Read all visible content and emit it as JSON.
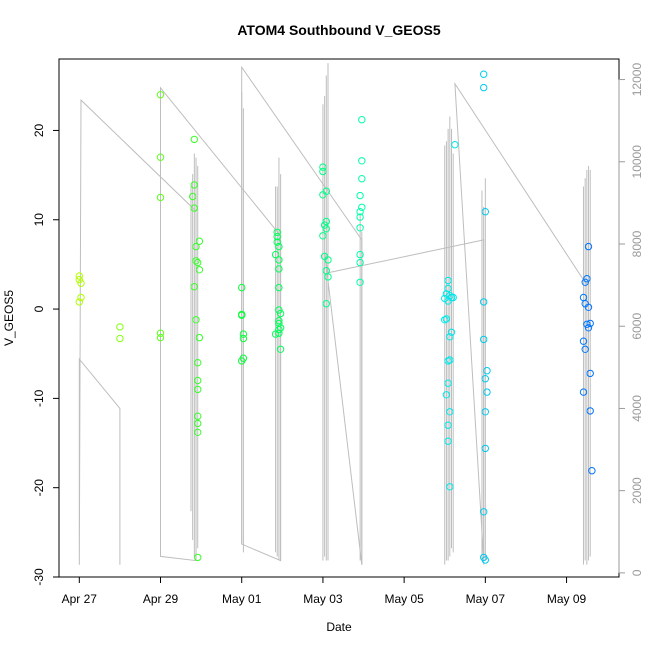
{
  "chart_data": {
    "type": "scatter",
    "title": "ATOM4 Southbound V_GEOS5",
    "xlabel": "Date",
    "ylabel": "V_GEOS5",
    "x_axis": {
      "type": "date",
      "range": [
        "2016-04-26T12:00",
        "2016-05-10T07:00"
      ],
      "ticks": [
        {
          "date": "2016-04-27",
          "label": "Apr 27"
        },
        {
          "date": "2016-04-29",
          "label": "Apr 29"
        },
        {
          "date": "2016-05-01",
          "label": "May 01"
        },
        {
          "date": "2016-05-03",
          "label": "May 03"
        },
        {
          "date": "2016-05-05",
          "label": "May 05"
        },
        {
          "date": "2016-05-07",
          "label": "May 07"
        },
        {
          "date": "2016-05-09",
          "label": "May 09"
        }
      ]
    },
    "y_axis": {
      "range": [
        -30,
        28
      ],
      "ticks": [
        -30,
        -20,
        -10,
        0,
        10,
        20
      ],
      "tick_labels": [
        "-30",
        "-20",
        "-10",
        "0",
        "10",
        "20"
      ]
    },
    "y2_axis": {
      "color": "#9a9a9a",
      "range": [
        -100,
        12500
      ],
      "ticks": [
        0,
        2000,
        4000,
        6000,
        8000,
        10000,
        12000
      ],
      "tick_labels": [
        "0",
        "2000",
        "4000",
        "6000",
        "8000",
        "10000",
        "12000"
      ]
    },
    "grid": false,
    "legend": "none",
    "colors": {
      "points_start": "#b3ff00",
      "points_end": "#0073ff",
      "altitude_line": "#bebebe"
    },
    "series": [
      {
        "values": [
          [
            "2016-04-27T00:00",
            3.7
          ],
          [
            "2016-04-27T00:00",
            3.3
          ],
          [
            "2016-04-27T01:00",
            2.9
          ],
          [
            "2016-04-27T00:00",
            0.8
          ],
          [
            "2016-04-27T01:00",
            1.3
          ],
          [
            "2016-04-28T00:00",
            -2.0
          ],
          [
            "2016-04-28T00:00",
            -3.3
          ],
          [
            "2016-04-29T00:00",
            24.0
          ],
          [
            "2016-04-29T00:00",
            17.0
          ],
          [
            "2016-04-29T00:00",
            12.5
          ],
          [
            "2016-04-29T00:00",
            -2.7
          ],
          [
            "2016-04-29T00:00",
            -3.2
          ],
          [
            "2016-04-29T20:00",
            19.0
          ],
          [
            "2016-04-29T20:00",
            13.9
          ],
          [
            "2016-04-29T19:00",
            12.6
          ],
          [
            "2016-04-29T20:00",
            11.3
          ],
          [
            "2016-04-29T21:00",
            7.0
          ],
          [
            "2016-04-29T21:00",
            5.4
          ],
          [
            "2016-04-29T20:00",
            2.5
          ],
          [
            "2016-04-29T22:00",
            5.2
          ],
          [
            "2016-04-29T23:00",
            7.6
          ],
          [
            "2016-04-29T23:00",
            4.4
          ],
          [
            "2016-04-29T21:00",
            -1.2
          ],
          [
            "2016-04-29T23:00",
            -3.2
          ],
          [
            "2016-04-29T22:00",
            -6.0
          ],
          [
            "2016-04-29T22:00",
            -8.0
          ],
          [
            "2016-04-29T22:00",
            -9.0
          ],
          [
            "2016-04-29T22:00",
            -12.0
          ],
          [
            "2016-04-29T22:00",
            -12.8
          ],
          [
            "2016-04-29T22:00",
            -13.8
          ],
          [
            "2016-04-29T22:00",
            -27.8
          ],
          [
            "2016-05-01T00:00",
            2.4
          ],
          [
            "2016-05-01T00:00",
            -0.6
          ],
          [
            "2016-05-01T00:00",
            -0.7
          ],
          [
            "2016-05-01T01:00",
            -2.8
          ],
          [
            "2016-05-01T01:00",
            -3.3
          ],
          [
            "2016-05-01T01:00",
            -5.5
          ],
          [
            "2016-05-01T00:00",
            -5.8
          ],
          [
            "2016-05-01T21:00",
            8.6
          ],
          [
            "2016-05-01T21:00",
            8.1
          ],
          [
            "2016-05-01T21:00",
            7.5
          ],
          [
            "2016-05-01T22:00",
            7.0
          ],
          [
            "2016-05-01T20:00",
            6.1
          ],
          [
            "2016-05-01T22:00",
            5.5
          ],
          [
            "2016-05-01T22:00",
            4.5
          ],
          [
            "2016-05-01T22:00",
            2.4
          ],
          [
            "2016-05-01T22:00",
            -0.1
          ],
          [
            "2016-05-01T23:00",
            -0.5
          ],
          [
            "2016-05-01T22:00",
            -1.3
          ],
          [
            "2016-05-01T22:00",
            -1.6
          ],
          [
            "2016-05-01T23:00",
            -2.1
          ],
          [
            "2016-05-01T22:00",
            -2.3
          ],
          [
            "2016-05-01T22:00",
            -2.7
          ],
          [
            "2016-05-01T20:00",
            -2.8
          ],
          [
            "2016-05-01T23:00",
            -4.5
          ],
          [
            "2016-05-03T00:00",
            15.9
          ],
          [
            "2016-05-03T00:00",
            15.4
          ],
          [
            "2016-05-03T02:00",
            13.2
          ],
          [
            "2016-05-03T00:00",
            12.8
          ],
          [
            "2016-05-03T02:00",
            9.8
          ],
          [
            "2016-05-03T01:00",
            9.4
          ],
          [
            "2016-05-03T02:00",
            9.0
          ],
          [
            "2016-05-03T00:00",
            8.2
          ],
          [
            "2016-05-03T01:00",
            5.9
          ],
          [
            "2016-05-03T03:00",
            5.5
          ],
          [
            "2016-05-03T02:00",
            4.3
          ],
          [
            "2016-05-03T03:00",
            3.6
          ],
          [
            "2016-05-03T02:00",
            0.6
          ],
          [
            "2016-05-03T23:00",
            21.2
          ],
          [
            "2016-05-03T23:00",
            16.6
          ],
          [
            "2016-05-03T23:00",
            14.6
          ],
          [
            "2016-05-03T22:00",
            12.7
          ],
          [
            "2016-05-03T23:00",
            11.4
          ],
          [
            "2016-05-03T22:00",
            10.9
          ],
          [
            "2016-05-03T22:00",
            10.3
          ],
          [
            "2016-05-03T22:00",
            9.1
          ],
          [
            "2016-05-03T22:00",
            6.1
          ],
          [
            "2016-05-03T22:00",
            5.2
          ],
          [
            "2016-05-03T22:00",
            3.0
          ],
          [
            "2016-05-06T02:00",
            3.2
          ],
          [
            "2016-05-06T02:00",
            2.3
          ],
          [
            "2016-05-06T01:00",
            1.7
          ],
          [
            "2016-05-06T00:00",
            1.2
          ],
          [
            "2016-05-06T02:00",
            0.9
          ],
          [
            "2016-05-06T03:00",
            1.5
          ],
          [
            "2016-05-06T04:00",
            1.3
          ],
          [
            "2016-05-06T05:00",
            1.3
          ],
          [
            "2016-05-06T00:00",
            -1.2
          ],
          [
            "2016-05-06T01:00",
            -1.1
          ],
          [
            "2016-05-06T04:00",
            -2.6
          ],
          [
            "2016-05-06T03:00",
            -3.1
          ],
          [
            "2016-05-06T02:00",
            -5.8
          ],
          [
            "2016-05-06T03:00",
            -5.7
          ],
          [
            "2016-05-06T02:00",
            -8.3
          ],
          [
            "2016-05-06T01:00",
            -9.6
          ],
          [
            "2016-05-06T03:00",
            -11.5
          ],
          [
            "2016-05-06T02:00",
            -13.0
          ],
          [
            "2016-05-06T02:00",
            -14.8
          ],
          [
            "2016-05-06T03:00",
            -19.9
          ],
          [
            "2016-05-06T06:00",
            18.4
          ],
          [
            "2016-05-06T23:00",
            26.3
          ],
          [
            "2016-05-06T23:00",
            24.8
          ],
          [
            "2016-05-07T00:00",
            10.9
          ],
          [
            "2016-05-06T23:00",
            0.8
          ],
          [
            "2016-05-06T23:00",
            -3.4
          ],
          [
            "2016-05-07T01:00",
            -6.9
          ],
          [
            "2016-05-07T00:00",
            -7.8
          ],
          [
            "2016-05-07T01:00",
            -9.3
          ],
          [
            "2016-05-07T00:00",
            -11.5
          ],
          [
            "2016-05-07T00:00",
            -15.6
          ],
          [
            "2016-05-06T23:00",
            -22.7
          ],
          [
            "2016-05-06T23:00",
            -27.8
          ],
          [
            "2016-05-07T00:00",
            -28.1
          ],
          [
            "2016-05-09T13:00",
            7.0
          ],
          [
            "2016-05-09T12:00",
            3.4
          ],
          [
            "2016-05-09T11:00",
            3.0
          ],
          [
            "2016-05-09T10:00",
            1.3
          ],
          [
            "2016-05-09T11:00",
            0.6
          ],
          [
            "2016-05-09T13:00",
            0.2
          ],
          [
            "2016-05-09T12:00",
            -1.7
          ],
          [
            "2016-05-09T14:00",
            -1.6
          ],
          [
            "2016-05-09T13:00",
            -2.1
          ],
          [
            "2016-05-09T10:00",
            -3.6
          ],
          [
            "2016-05-09T11:00",
            -4.5
          ],
          [
            "2016-05-09T14:00",
            -7.2
          ],
          [
            "2016-05-09T10:00",
            -9.3
          ],
          [
            "2016-05-09T14:00",
            -11.4
          ],
          [
            "2016-05-09T15:00",
            -18.1
          ]
        ]
      },
      {
        "axis": "y2",
        "style": "line",
        "values": [
          [
            "2016-04-27T00:00",
            200
          ],
          [
            "2016-04-27T00:00",
            5200
          ],
          [
            "2016-04-28T00:00",
            4000
          ],
          [
            "2016-04-28T00:00",
            200
          ],
          [
            "2016-04-28T00:00",
            4000
          ],
          [
            "2016-04-27T00:00",
            5200
          ],
          [
            "2016-04-27T00:00",
            200
          ],
          [
            "2016-04-27T01:00",
            11500
          ],
          [
            "2016-04-29T21:00",
            8800
          ],
          [
            "2016-04-29T21:00",
            300
          ],
          [
            "2016-04-29T00:00",
            400
          ],
          [
            "2016-04-29T00:00",
            11800
          ],
          [
            "2016-05-01T23:00",
            8200
          ],
          [
            "2016-05-01T23:00",
            300
          ],
          [
            "2016-05-01T00:00",
            700
          ],
          [
            "2016-05-01T00:00",
            12300
          ],
          [
            "2016-05-03T23:00",
            8100
          ],
          [
            "2016-05-03T23:00",
            200
          ],
          [
            "2016-05-03T01:00",
            7800
          ],
          [
            "2016-05-03T03:00",
            7300
          ],
          [
            "2016-05-06T23:00",
            8100
          ],
          [
            "2016-05-06T23:00",
            300
          ],
          [
            "2016-05-06T06:00",
            11900
          ],
          [
            "2016-05-09T12:00",
            7000
          ]
        ]
      }
    ]
  }
}
